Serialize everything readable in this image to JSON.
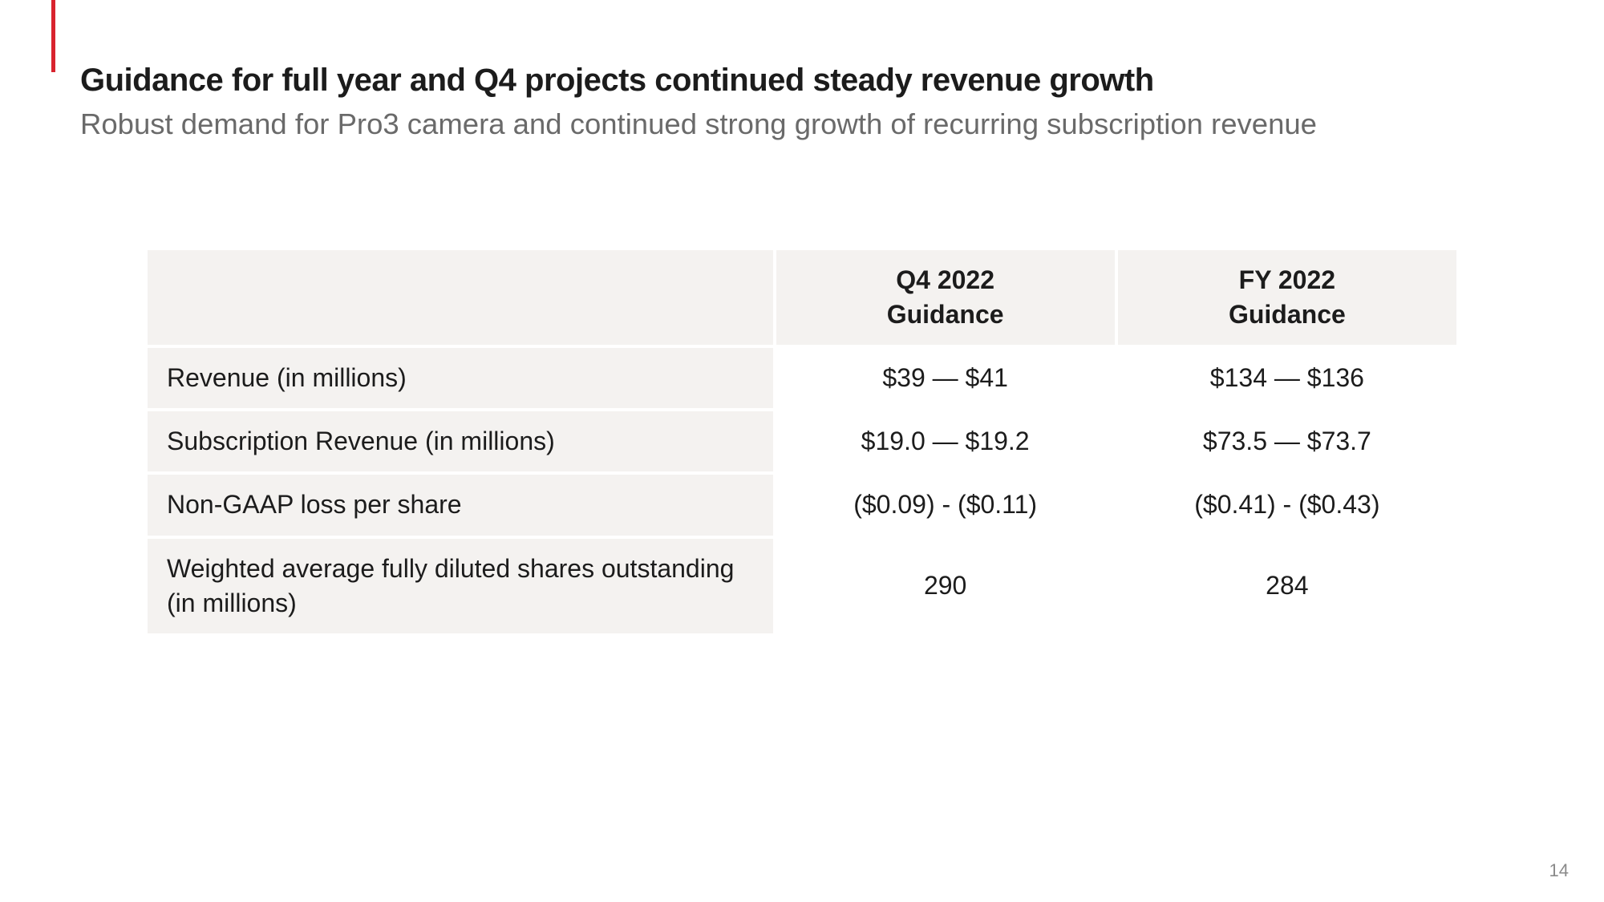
{
  "accent_color": "#d9232e",
  "header": {
    "title": "Guidance for full year and Q4 projects continued steady revenue growth",
    "subtitle": "Robust demand for Pro3 camera and continued strong growth of recurring subscription revenue"
  },
  "table": {
    "columns": [
      {
        "line1": "Q4 2022",
        "line2": "Guidance"
      },
      {
        "line1": "FY 2022",
        "line2": "Guidance"
      }
    ],
    "rows": [
      {
        "metric": "Revenue (in millions)",
        "q4": "$39 — $41",
        "fy": "$134 — $136"
      },
      {
        "metric": "Subscription Revenue (in millions)",
        "q4": "$19.0 — $19.2",
        "fy": "$73.5 — $73.7"
      },
      {
        "metric": "Non-GAAP loss per share",
        "q4": "($0.09) - ($0.11)",
        "fy": "($0.41) - ($0.43)"
      },
      {
        "metric": "Weighted average fully diluted shares outstanding (in millions)",
        "q4": "290",
        "fy": "284"
      }
    ]
  },
  "page_number": "14"
}
